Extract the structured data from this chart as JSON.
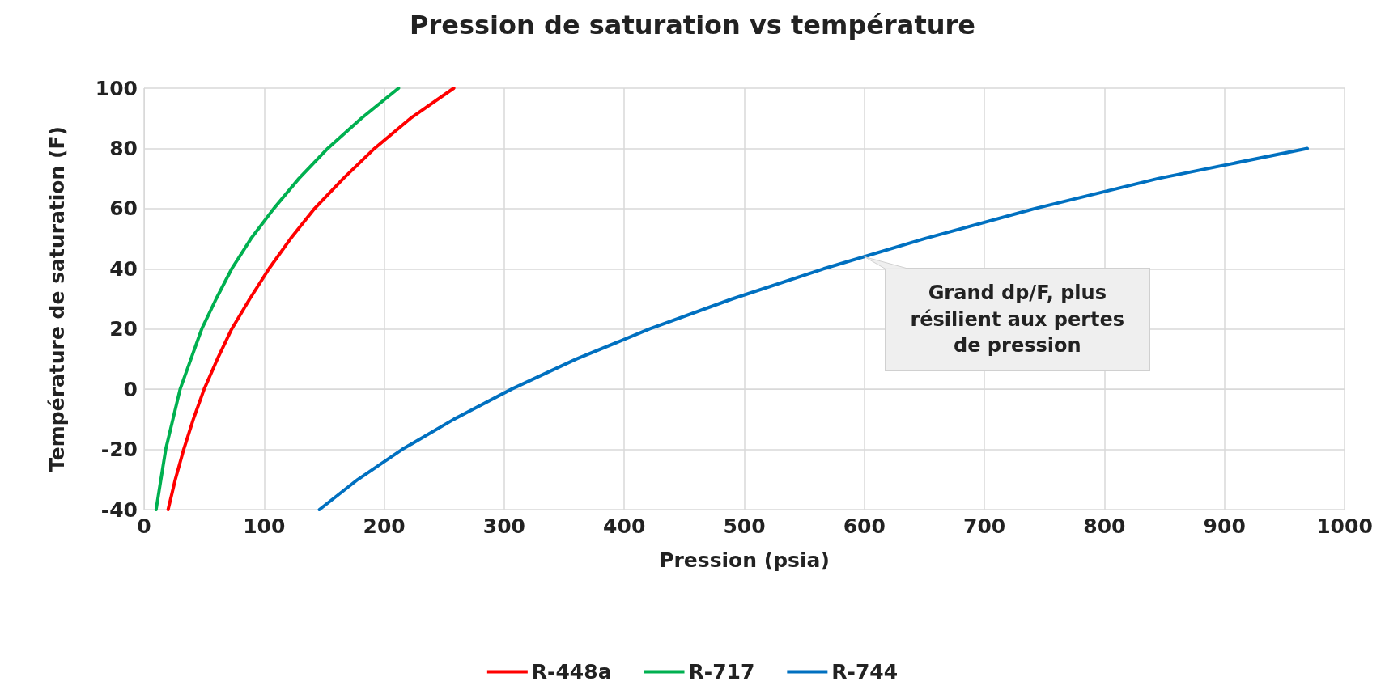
{
  "chart_data": {
    "type": "line",
    "title": "Pression de saturation vs température",
    "xlabel": "Pression (psia)",
    "ylabel": "Température de saturation (F)",
    "series": [
      {
        "name": "R-448a",
        "color": "#ff0000",
        "x": [
          20,
          26,
          33,
          41,
          50,
          61,
          73,
          88,
          104,
          122,
          142,
          166,
          192,
          222,
          258
        ],
        "values": [
          -40,
          -30,
          -20,
          -10,
          0,
          10,
          20,
          30,
          40,
          50,
          60,
          70,
          80,
          90,
          100
        ]
      },
      {
        "name": "R-717",
        "color": "#00b050",
        "x": [
          10,
          14,
          18,
          24,
          30,
          39,
          48,
          60,
          73,
          89,
          108,
          129,
          153,
          181,
          212
        ],
        "values": [
          -40,
          -30,
          -20,
          -10,
          0,
          10,
          20,
          30,
          40,
          50,
          60,
          70,
          80,
          90,
          100
        ]
      },
      {
        "name": "R-744",
        "color": "#0070c0",
        "x": [
          146,
          178,
          215,
          258,
          306,
          360,
          421,
          490,
          566,
          650,
          742,
          845,
          969
        ],
        "values": [
          -40,
          -30,
          -20,
          -10,
          0,
          10,
          20,
          30,
          40,
          50,
          60,
          70,
          80
        ]
      }
    ],
    "xlim": [
      0,
      1000
    ],
    "xticks": [
      0,
      100,
      200,
      300,
      400,
      500,
      600,
      700,
      800,
      900,
      1000
    ],
    "ylim": [
      -40,
      100
    ],
    "yticks": [
      -40,
      -20,
      0,
      20,
      40,
      60,
      80,
      100
    ],
    "grid": true,
    "legend": "bottom",
    "marker": "none",
    "line_style": "solid",
    "annotations": [
      {
        "text": "Grand dp/F, plus résilient aux pertes de pression",
        "x": 600,
        "y": 44
      }
    ]
  }
}
